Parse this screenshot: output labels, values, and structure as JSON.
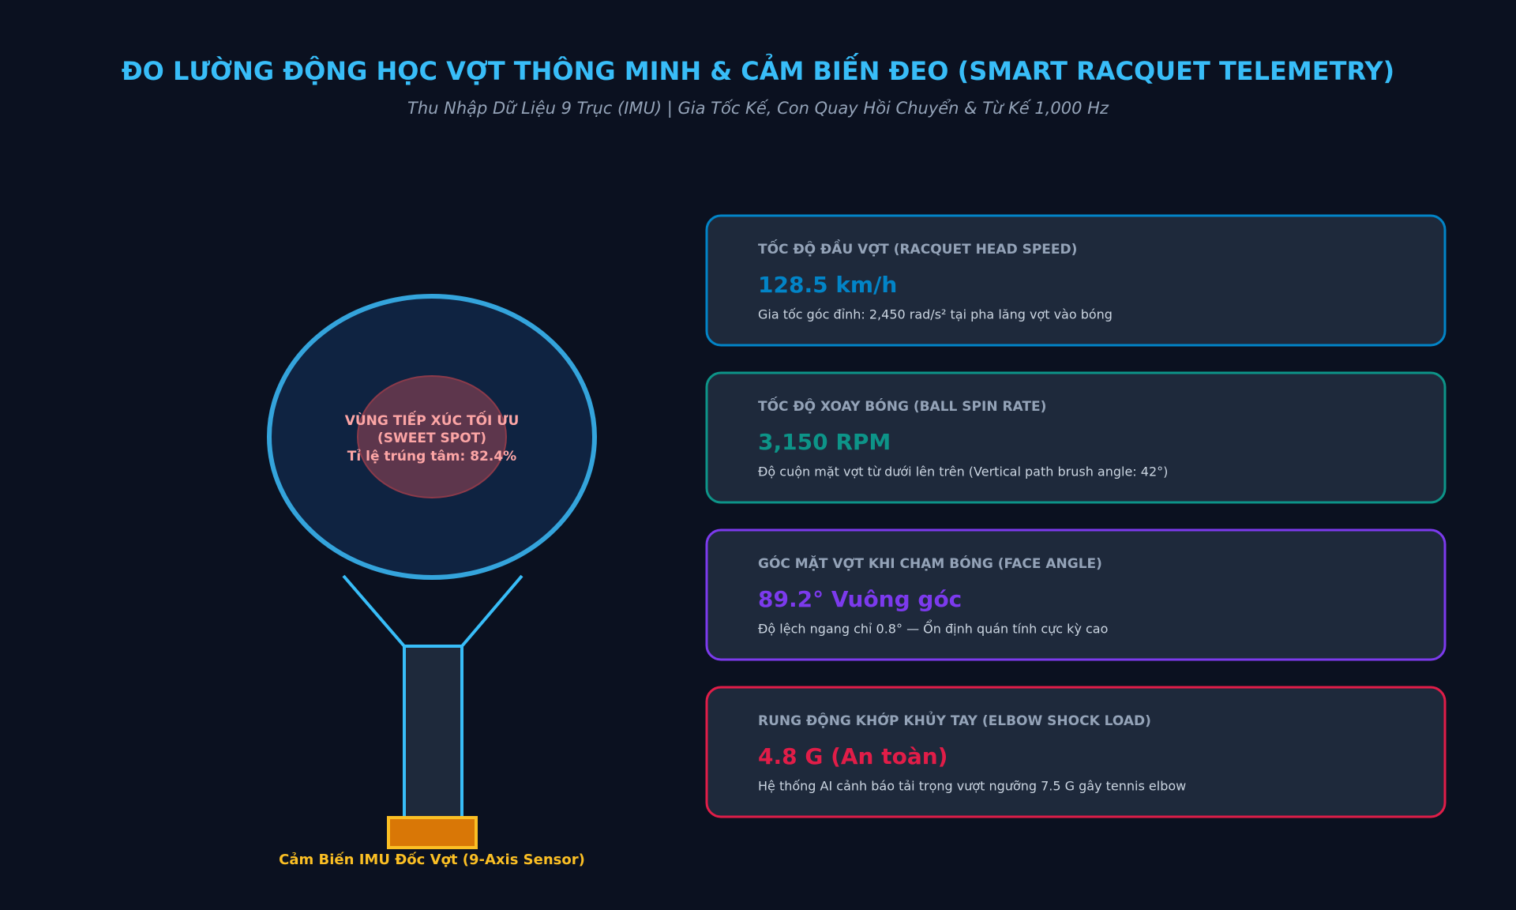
{
  "header": {
    "title": "ĐO LƯỜNG ĐỘNG HỌC VỢT THÔNG MINH & CẢM BIẾN ĐEO (SMART RACQUET TELEMETRY)",
    "subtitle": "Thu Nhập Dữ Liệu 9 Trục (IMU) | Gia Tốc Kế, Con Quay Hồi Chuyển & Từ Kế 1,000 Hz"
  },
  "racquet": {
    "sweet_spot": [
      "VÙNG TIẾP XÚC TỐI ƯU",
      "(SWEET SPOT)",
      "Tỉ lệ trúng tâm: 82.4%"
    ],
    "sensor_label": "Cảm Biến IMU Đốc Vợt (9-Axis Sensor)"
  },
  "cards": [
    {
      "label": "TỐC ĐỘ ĐẦU VỢT (RACQUET HEAD SPEED)",
      "value": "128.5 km/h",
      "note": "Gia tốc góc đỉnh: 2,450 rad/s² tại pha lăng vợt vào bóng",
      "color": "#0284c7"
    },
    {
      "label": "TỐC ĐỘ XOAY BÓNG (BALL SPIN RATE)",
      "value": "3,150 RPM",
      "note": "Độ cuộn mặt vợt từ dưới lên trên (Vertical path brush angle: 42°)",
      "color": "#0d9488"
    },
    {
      "label": "GÓC MẶT VỢT KHI CHẠM BÓNG (FACE ANGLE)",
      "value": "89.2° Vuông góc",
      "note": "Độ lệch ngang chỉ 0.8° — Ổn định quán tính cực kỳ cao",
      "color": "#7c3aed"
    },
    {
      "label": "RUNG ĐỘNG KHỚP KHỦY TAY (ELBOW SHOCK LOAD)",
      "value": "4.8 G (An toàn)",
      "note": "Hệ thống AI cảnh báo tải trọng vượt ngưỡng 7.5 G gây tennis elbow",
      "color": "#e11d48"
    }
  ]
}
